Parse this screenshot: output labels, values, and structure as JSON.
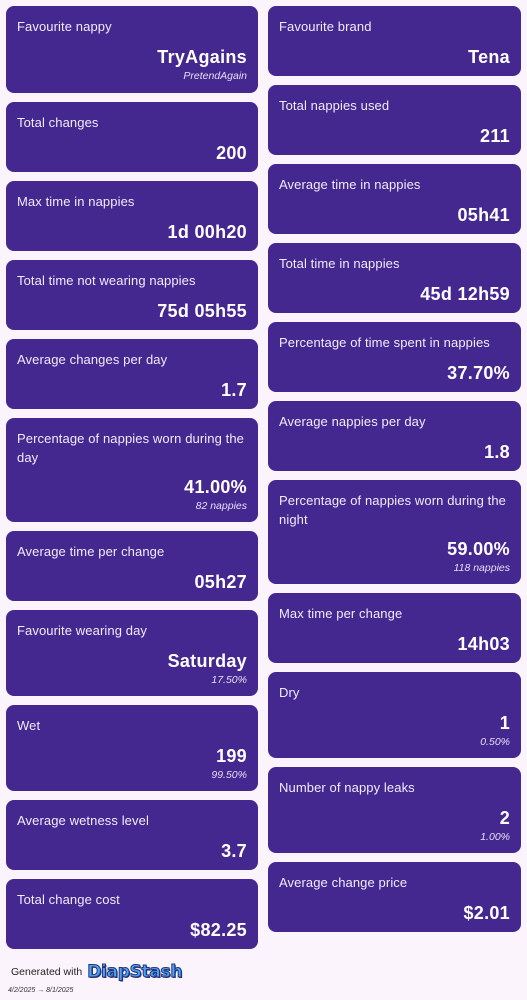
{
  "left": [
    {
      "title": "Favourite nappy",
      "value": "TryAgains",
      "sub": "PretendAgain"
    },
    {
      "title": "Total changes",
      "value": "200"
    },
    {
      "title": "Max time in nappies",
      "value": "1d 00h20"
    },
    {
      "title": "Total time not wearing nappies",
      "value": "75d 05h55"
    },
    {
      "title": "Average changes per day",
      "value": "1.7"
    },
    {
      "title": "Percentage of nappies worn during the day",
      "value": "41.00%",
      "sub": "82 nappies"
    },
    {
      "title": "Average time per change",
      "value": "05h27"
    },
    {
      "title": "Favourite wearing day",
      "value": "Saturday",
      "sub": "17.50%"
    },
    {
      "title": "Wet",
      "value": "199",
      "sub": "99.50%"
    },
    {
      "title": "Average wetness level",
      "value": "3.7"
    },
    {
      "title": "Total change cost",
      "value": "$82.25"
    }
  ],
  "right": [
    {
      "title": "Favourite brand",
      "value": "Tena"
    },
    {
      "title": "Total nappies used",
      "value": "211"
    },
    {
      "title": "Average time in nappies",
      "value": "05h41"
    },
    {
      "title": "Total time in nappies",
      "value": "45d 12h59"
    },
    {
      "title": "Percentage of time spent in nappies",
      "value": "37.70%"
    },
    {
      "title": "Average nappies per day",
      "value": "1.8"
    },
    {
      "title": "Percentage of nappies worn during the night",
      "value": "59.00%",
      "sub": "118 nappies"
    },
    {
      "title": "Max time per change",
      "value": "14h03"
    },
    {
      "title": "Dry",
      "value": "1",
      "sub": "0.50%"
    },
    {
      "title": "Number of nappy leaks",
      "value": "2",
      "sub": "1.00%"
    },
    {
      "title": "Average change price",
      "value": "$2.01"
    }
  ],
  "footer": {
    "generated_label": "Generated with",
    "brand": "DiapStash",
    "date_range": "4/2/2025 → 8/1/2025"
  },
  "colors": {
    "card_background": "#44278f",
    "page_background": "#fcf4fd",
    "logo_fill": "#4aa4f0",
    "logo_outline": "#27337a"
  }
}
